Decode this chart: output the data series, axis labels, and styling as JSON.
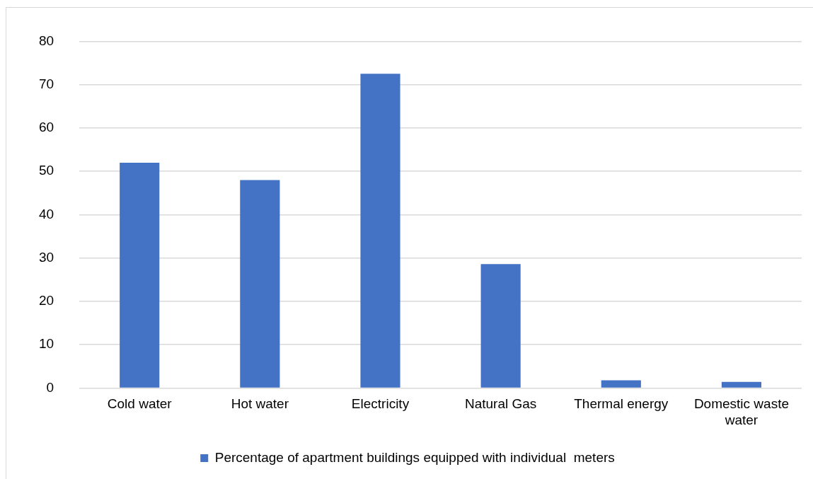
{
  "chart_data": {
    "type": "bar",
    "categories": [
      "Cold water",
      "Hot water",
      "Electricity",
      "Natural Gas",
      "Thermal energy",
      "Domestic waste water"
    ],
    "series": [
      {
        "name": "Percentage of apartment buildings equipped with individual  meters",
        "color": "#4472c4",
        "values": [
          52,
          48,
          72.5,
          28.6,
          1.8,
          1.4
        ]
      }
    ],
    "ylim": [
      0,
      80
    ],
    "yticks": [
      0,
      10,
      20,
      30,
      40,
      50,
      60,
      70,
      80
    ],
    "grid": "y",
    "legend": "bottom"
  }
}
